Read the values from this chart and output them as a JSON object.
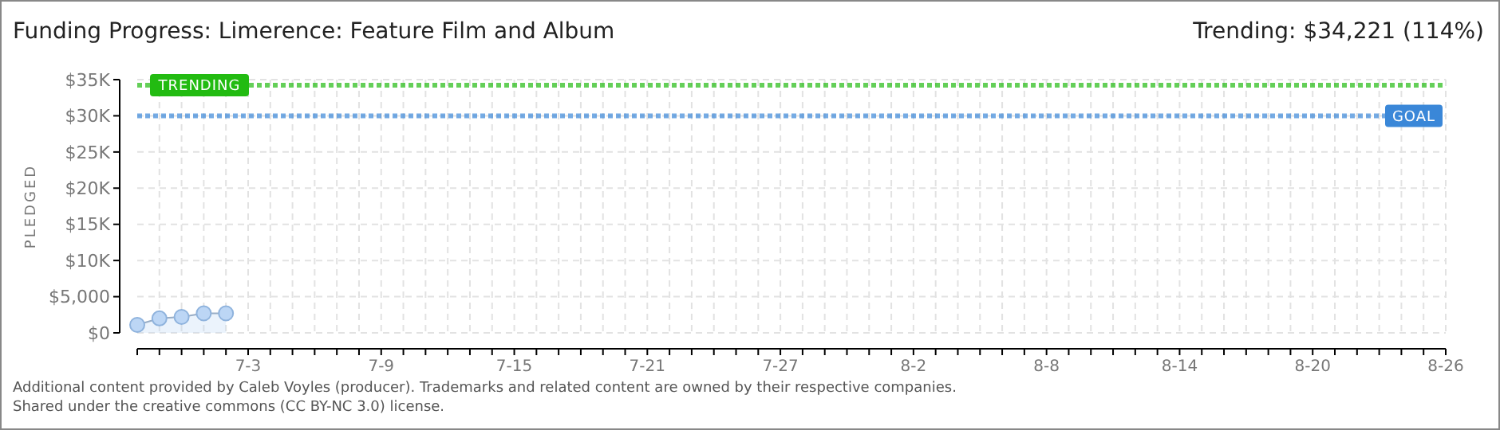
{
  "chart_data": {
    "type": "area",
    "title": "Funding Progress: Limerence: Feature Film and Album",
    "subtitle": "Trending: $34,221 (114%)",
    "ylabel": "PLEDGED",
    "x": [
      "--06-28",
      "--06-29",
      "--06-30",
      "--07-01",
      "--07-02"
    ],
    "series": [
      {
        "color": "#bcd6f5",
        "values": [
          1100,
          2000,
          2200,
          2700,
          2700
        ]
      }
    ],
    "marker": "circle",
    "grid": true,
    "xlim": [
      "--06-28",
      "--08-26"
    ],
    "xticks": [
      {
        "value": "--06-29",
        "label": null
      },
      {
        "value": "--06-30",
        "label": null
      },
      {
        "value": "--07-01",
        "label": null
      },
      {
        "value": "--07-02",
        "label": null
      },
      {
        "value": "--07-03",
        "label": "7-3"
      },
      {
        "value": "--07-04",
        "label": null
      },
      {
        "value": "--07-05",
        "label": null
      },
      {
        "value": "--07-06",
        "label": null
      },
      {
        "value": "--07-07",
        "label": null
      },
      {
        "value": "--07-08",
        "label": null
      },
      {
        "value": "--07-09",
        "label": "7-9"
      },
      {
        "value": "--07-10",
        "label": null
      },
      {
        "value": "--07-11",
        "label": null
      },
      {
        "value": "--07-12",
        "label": null
      },
      {
        "value": "--07-13",
        "label": null
      },
      {
        "value": "--07-14",
        "label": null
      },
      {
        "value": "--07-15",
        "label": "7-15"
      },
      {
        "value": "--07-16",
        "label": null
      },
      {
        "value": "--07-17",
        "label": null
      },
      {
        "value": "--07-18",
        "label": null
      },
      {
        "value": "--07-19",
        "label": null
      },
      {
        "value": "--07-20",
        "label": null
      },
      {
        "value": "--07-21",
        "label": "7-21"
      },
      {
        "value": "--07-22",
        "label": null
      },
      {
        "value": "--07-23",
        "label": null
      },
      {
        "value": "--07-24",
        "label": null
      },
      {
        "value": "--07-25",
        "label": null
      },
      {
        "value": "--07-26",
        "label": null
      },
      {
        "value": "--07-27",
        "label": "7-27"
      },
      {
        "value": "--07-28",
        "label": null
      },
      {
        "value": "--07-29",
        "label": null
      },
      {
        "value": "--07-30",
        "label": null
      },
      {
        "value": "--07-31",
        "label": null
      },
      {
        "value": "--08-01",
        "label": null
      },
      {
        "value": "--08-02",
        "label": "8-2"
      },
      {
        "value": "--08-03",
        "label": null
      },
      {
        "value": "--08-04",
        "label": null
      },
      {
        "value": "--08-05",
        "label": null
      },
      {
        "value": "--08-06",
        "label": null
      },
      {
        "value": "--08-07",
        "label": null
      },
      {
        "value": "--08-08",
        "label": "8-8"
      },
      {
        "value": "--08-09",
        "label": null
      },
      {
        "value": "--08-10",
        "label": null
      },
      {
        "value": "--08-11",
        "label": null
      },
      {
        "value": "--08-12",
        "label": null
      },
      {
        "value": "--08-13",
        "label": null
      },
      {
        "value": "--08-14",
        "label": "8-14"
      },
      {
        "value": "--08-15",
        "label": null
      },
      {
        "value": "--08-16",
        "label": null
      },
      {
        "value": "--08-17",
        "label": null
      },
      {
        "value": "--08-18",
        "label": null
      },
      {
        "value": "--08-19",
        "label": null
      },
      {
        "value": "--08-20",
        "label": "8-20"
      },
      {
        "value": "--08-21",
        "label": null
      },
      {
        "value": "--08-22",
        "label": null
      },
      {
        "value": "--08-23",
        "label": null
      },
      {
        "value": "--08-24",
        "label": null
      },
      {
        "value": "--08-25",
        "label": null
      },
      {
        "value": "--08-26",
        "label": "8-26"
      }
    ],
    "ylim": [
      0,
      35000
    ],
    "yticks": [
      {
        "value": 0,
        "label": "$0"
      },
      {
        "value": 5000,
        "label": "$5,000"
      },
      {
        "value": 10000,
        "label": "$10K"
      },
      {
        "value": 15000,
        "label": "$15K"
      },
      {
        "value": 20000,
        "label": "$20K"
      },
      {
        "value": 25000,
        "label": "$25K"
      },
      {
        "value": 30000,
        "label": "$30K"
      },
      {
        "value": 35000,
        "label": "$35K"
      }
    ],
    "ref_lines": [
      {
        "axis": "y",
        "value": 34221,
        "label": "TRENDING",
        "color": "#22bb11",
        "line_style": "dotted"
      },
      {
        "axis": "y",
        "value": 30000,
        "label": "GOAL",
        "color": "#3a87d8",
        "line_style": "dotted"
      }
    ],
    "annotations": [
      "Additional content provided by Caleb Voyles (producer). Trademarks and related content are owned by their respective companies.",
      "Shared under the creative commons (CC BY-NC 3.0) license."
    ]
  }
}
